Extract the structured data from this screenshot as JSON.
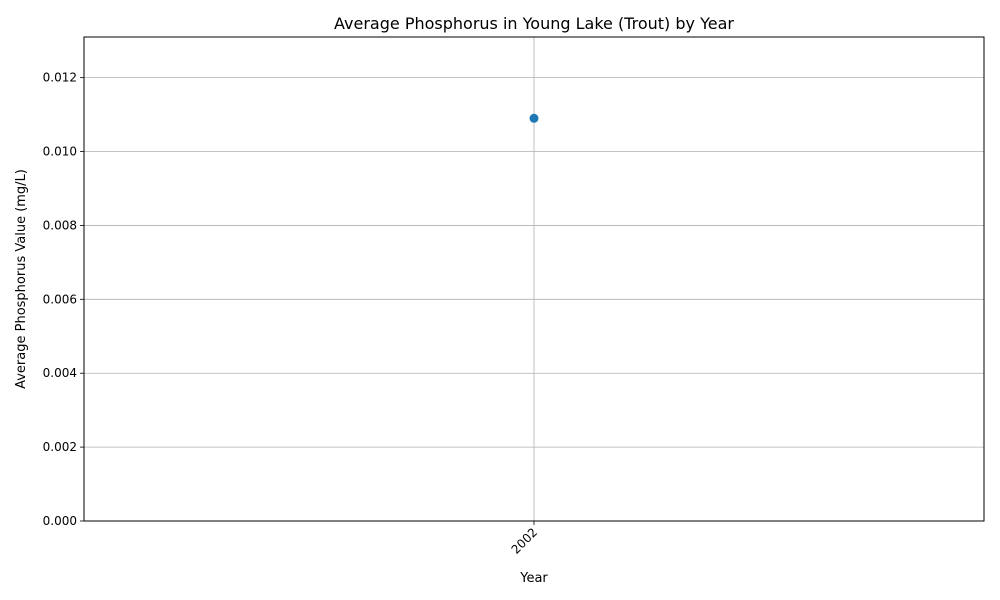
{
  "chart_data": {
    "type": "line",
    "title": "Average Phosphorus in Young Lake (Trout) by Year",
    "xlabel": "Year",
    "ylabel": "Average Phosphorus Value (mg/L)",
    "categories": [
      "2002"
    ],
    "series": [
      {
        "values": [
          0.0109
        ],
        "color": "#1f77b4"
      }
    ],
    "ylim": [
      0,
      0.0131
    ],
    "yticks": [
      "0.000",
      "0.002",
      "0.004",
      "0.006",
      "0.008",
      "0.010",
      "0.012"
    ],
    "grid": true,
    "legend": false
  }
}
